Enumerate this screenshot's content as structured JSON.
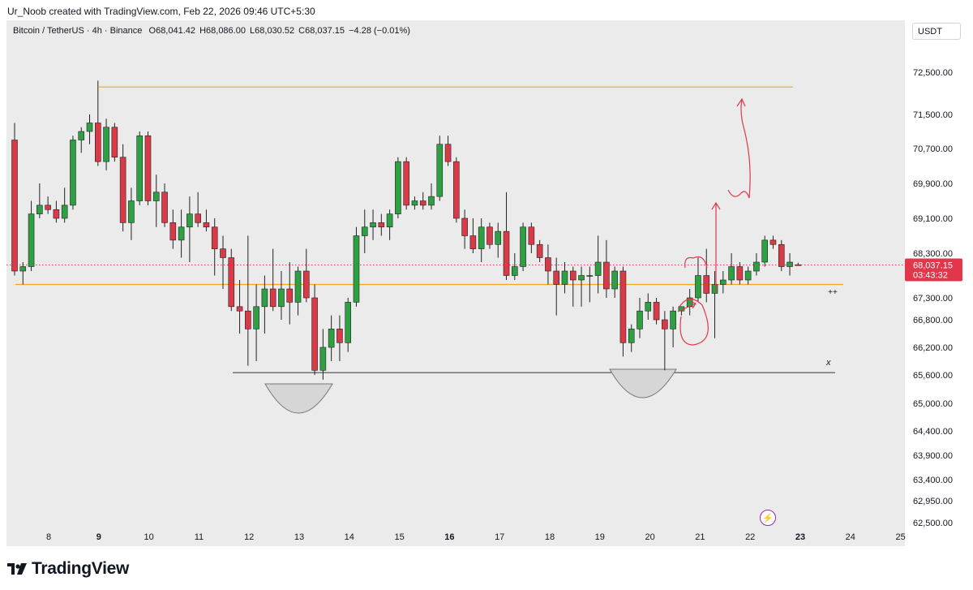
{
  "credit": "Ur_Noob created with TradingView.com, Feb 22, 2026 09:46 UTC+5:30",
  "symbol": {
    "name": "Bitcoin / TetherUS · 4h · Binance",
    "open": "O68,041.42",
    "high": "H68,086.00",
    "low": "L68,030.52",
    "close": "C68,037.15",
    "change": "−4.28 (−0.01%)"
  },
  "currency": "USDT",
  "brand": "TradingView",
  "colors": {
    "up": "#2ea043",
    "down": "#d93a48",
    "level": "#f5a623",
    "neckline": "#333333",
    "annotation": "#e0374a",
    "current_price": "#e0374a"
  },
  "icons": [
    "tradingview-logo-icon",
    "flash-icon"
  ],
  "chart_data": {
    "type": "candlestick",
    "symbol": "Bitcoin / TetherUS",
    "timeframe": "4h",
    "exchange": "Binance",
    "x_ticks": [
      "8",
      "9",
      "10",
      "11",
      "12",
      "13",
      "14",
      "15",
      "16",
      "17",
      "18",
      "19",
      "20",
      "21",
      "22",
      "23",
      "24",
      "25"
    ],
    "bold_x_ticks": [
      "9",
      "16",
      "23"
    ],
    "y_ticks": [
      72500,
      71500,
      70700,
      69900,
      69100,
      68300,
      67300,
      66800,
      66200,
      65600,
      65000,
      64400,
      63900,
      63400,
      62950,
      62500
    ],
    "y_tick_labels": [
      "72,500.00",
      "71,500.00",
      "70,700.00",
      "69,900.00",
      "69,100.00",
      "68,300.00",
      "67,300.00",
      "66,800.00",
      "66,200.00",
      "65,600.00",
      "65,000.00",
      "64,400.00",
      "63,900.00",
      "63,400.00",
      "62,950.00",
      "62,500.00"
    ],
    "current_price": {
      "value": 68037.15,
      "label": "68,037.15",
      "countdown": "03:43:32"
    },
    "candles": [
      [
        70900,
        71300,
        67800,
        67900
      ],
      [
        67900,
        68100,
        67600,
        68000
      ],
      [
        68000,
        69500,
        67900,
        69200
      ],
      [
        69200,
        69900,
        69100,
        69400
      ],
      [
        69400,
        69600,
        69200,
        69300
      ],
      [
        69300,
        69500,
        69000,
        69100
      ],
      [
        69100,
        69800,
        69000,
        69400
      ],
      [
        69400,
        71000,
        69300,
        70900
      ],
      [
        70900,
        71200,
        70600,
        71100
      ],
      [
        71100,
        71500,
        70800,
        71300
      ],
      [
        71300,
        72300,
        70300,
        70400
      ],
      [
        70400,
        71400,
        70200,
        71200
      ],
      [
        71200,
        71300,
        70400,
        70500
      ],
      [
        70500,
        70800,
        68800,
        69000
      ],
      [
        69000,
        69800,
        68600,
        69500
      ],
      [
        69500,
        71100,
        69400,
        71000
      ],
      [
        71000,
        71100,
        69400,
        69500
      ],
      [
        69500,
        70100,
        68900,
        69700
      ],
      [
        69700,
        69900,
        68900,
        69000
      ],
      [
        69000,
        69300,
        68400,
        68600
      ],
      [
        68600,
        69300,
        68200,
        68900
      ],
      [
        68900,
        69600,
        68100,
        69200
      ],
      [
        69200,
        69700,
        68900,
        69000
      ],
      [
        69000,
        69300,
        68800,
        68900
      ],
      [
        68900,
        69100,
        67800,
        68400
      ],
      [
        68400,
        68700,
        67500,
        68200
      ],
      [
        68200,
        68400,
        67000,
        67100
      ],
      [
        67100,
        67700,
        66500,
        67000
      ],
      [
        67000,
        68700,
        65800,
        66600
      ],
      [
        66600,
        67600,
        65900,
        67100
      ],
      [
        67100,
        67800,
        66500,
        67500
      ],
      [
        67500,
        68400,
        67000,
        67100
      ],
      [
        67100,
        67900,
        66800,
        67500
      ],
      [
        67500,
        68100,
        66700,
        67200
      ],
      [
        67200,
        68000,
        66900,
        67900
      ],
      [
        67900,
        68400,
        67200,
        67300
      ],
      [
        67300,
        67600,
        65600,
        65700
      ],
      [
        65700,
        66600,
        65500,
        66200
      ],
      [
        66200,
        66900,
        65900,
        66600
      ],
      [
        66600,
        66900,
        65900,
        66300
      ],
      [
        66300,
        67300,
        66100,
        67200
      ],
      [
        67200,
        68900,
        67100,
        68700
      ],
      [
        68700,
        69300,
        68300,
        68900
      ],
      [
        68900,
        69300,
        68600,
        69000
      ],
      [
        69000,
        69200,
        68700,
        68900
      ],
      [
        68900,
        69300,
        68600,
        69200
      ],
      [
        69200,
        70500,
        69100,
        70400
      ],
      [
        70400,
        70500,
        69300,
        69400
      ],
      [
        69400,
        69600,
        69300,
        69500
      ],
      [
        69500,
        69700,
        69300,
        69400
      ],
      [
        69400,
        69900,
        69300,
        69600
      ],
      [
        69600,
        71000,
        69500,
        70800
      ],
      [
        70800,
        71000,
        70300,
        70400
      ],
      [
        70400,
        70500,
        69000,
        69100
      ],
      [
        69100,
        69300,
        68400,
        68700
      ],
      [
        68700,
        69100,
        68300,
        68400
      ],
      [
        68400,
        69100,
        68100,
        68900
      ],
      [
        68900,
        69000,
        68400,
        68500
      ],
      [
        68500,
        69000,
        68200,
        68800
      ],
      [
        68800,
        69700,
        67700,
        67800
      ],
      [
        67800,
        68300,
        67700,
        68000
      ],
      [
        68000,
        69000,
        67900,
        68900
      ],
      [
        68900,
        69000,
        68300,
        68500
      ],
      [
        68500,
        68600,
        68100,
        68200
      ],
      [
        68200,
        68500,
        67600,
        67900
      ],
      [
        67900,
        68200,
        66900,
        67600
      ],
      [
        67600,
        68100,
        67400,
        67900
      ],
      [
        67900,
        68000,
        67100,
        67700
      ],
      [
        67700,
        68000,
        67100,
        67800
      ],
      [
        67800,
        68000,
        67200,
        67800
      ],
      [
        67800,
        68700,
        67400,
        68100
      ],
      [
        68100,
        68600,
        67300,
        67500
      ],
      [
        67500,
        68000,
        67300,
        67900
      ],
      [
        67900,
        68000,
        66000,
        66300
      ],
      [
        66300,
        66700,
        66100,
        66600
      ],
      [
        66600,
        67300,
        66400,
        67000
      ],
      [
        67000,
        67400,
        66800,
        67200
      ],
      [
        67200,
        67300,
        66700,
        66800
      ],
      [
        66800,
        67000,
        65700,
        66600
      ],
      [
        66600,
        67100,
        66200,
        67000
      ],
      [
        67000,
        67100,
        66900,
        67100
      ],
      [
        67100,
        67500,
        66900,
        67300
      ],
      [
        67300,
        68200,
        67200,
        67800
      ],
      [
        67800,
        68400,
        67200,
        67400
      ],
      [
        67400,
        67900,
        66400,
        67600
      ],
      [
        67600,
        67900,
        67400,
        67700
      ],
      [
        67700,
        68300,
        67600,
        68000
      ],
      [
        68000,
        68100,
        67600,
        67700
      ],
      [
        67700,
        68000,
        67600,
        67900
      ],
      [
        67900,
        68300,
        67800,
        68100
      ],
      [
        68100,
        68700,
        68000,
        68600
      ],
      [
        68600,
        68700,
        68400,
        68500
      ],
      [
        68500,
        68600,
        67900,
        68000
      ],
      [
        68000,
        68300,
        67800,
        68100
      ],
      [
        68041.42,
        68086.0,
        68030.52,
        68037.15
      ]
    ],
    "levels": [
      {
        "price": 72150,
        "color": "orange"
      },
      {
        "price": 67600,
        "color": "orange"
      },
      {
        "price": 65650,
        "color": "dark"
      }
    ],
    "annotations": [
      "++",
      "x"
    ]
  }
}
